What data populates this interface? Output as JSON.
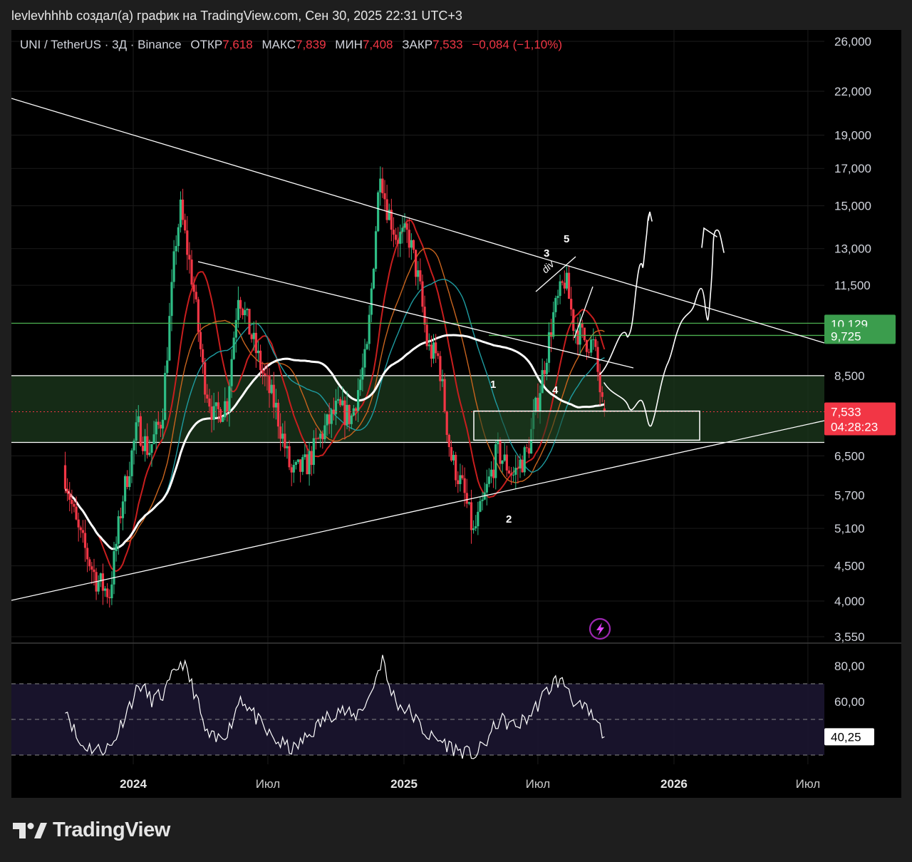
{
  "header": {
    "caption": "levlevhhhb создал(а) график на TradingView.com, Сен 30, 2025 22:31 UTC+3"
  },
  "symbol": {
    "name": "UNI / TetherUS · 3Д · Binance",
    "open_label": "ОТКР",
    "open": "7,618",
    "high_label": "МАКС",
    "high": "7,839",
    "low_label": "МИН",
    "low": "7,408",
    "close_label": "ЗАКР",
    "close": "7,533",
    "change": "−0,084 (−1,10%)"
  },
  "colors": {
    "up": "#2ebd85",
    "down": "#f23645",
    "ma_red": "#c81e1e",
    "ma_orange": "#c8641e",
    "ma_teal": "#1e9ba0",
    "ma_white": "#ffffff",
    "green_line": "#4caf50"
  },
  "chart_data": {
    "type": "candlestick",
    "timeframe": "3D",
    "y_scale": "log",
    "price_axis_labels": [
      "26,000",
      "22,000",
      "19,000",
      "17,000",
      "15,000",
      "13,000",
      "11,500",
      "8,500",
      "6,500",
      "5,700",
      "5,100",
      "4,500",
      "4,000",
      "3,550"
    ],
    "time_axis_labels": [
      "2024",
      "Июл",
      "2025",
      "Июл",
      "2026",
      "Июл"
    ],
    "price_tags": {
      "level_1": "10,129",
      "level_2": "9,725",
      "last_price": "7,533",
      "countdown": "04:28:23"
    },
    "price_path": [
      [
        "2023-10-01",
        6.3
      ],
      [
        "2023-10-20",
        5.1
      ],
      [
        "2023-11-15",
        4.3
      ],
      [
        "2023-12-03",
        4.1
      ],
      [
        "2023-12-20",
        5.6
      ],
      [
        "2024-01-10",
        7.2
      ],
      [
        "2024-01-25",
        6.6
      ],
      [
        "2024-02-12",
        7.4
      ],
      [
        "2024-03-01",
        13.2
      ],
      [
        "2024-03-08",
        14.8
      ],
      [
        "2024-03-25",
        11.5
      ],
      [
        "2024-04-08",
        8.5
      ],
      [
        "2024-04-22",
        7.4
      ],
      [
        "2024-05-10",
        7.8
      ],
      [
        "2024-05-25",
        11.3
      ],
      [
        "2024-06-08",
        10.0
      ],
      [
        "2024-06-28",
        8.5
      ],
      [
        "2024-07-15",
        7.6
      ],
      [
        "2024-08-05",
        6.1
      ],
      [
        "2024-08-25",
        6.3
      ],
      [
        "2024-09-15",
        7.0
      ],
      [
        "2024-10-05",
        7.6
      ],
      [
        "2024-10-25",
        7.4
      ],
      [
        "2024-11-15",
        9.2
      ],
      [
        "2024-12-03",
        17.2
      ],
      [
        "2024-12-10",
        15.2
      ],
      [
        "2024-12-25",
        13.5
      ],
      [
        "2025-01-10",
        13.6
      ],
      [
        "2025-01-25",
        11.5
      ],
      [
        "2025-02-05",
        9.3
      ],
      [
        "2025-02-20",
        9.0
      ],
      [
        "2025-03-08",
        6.5
      ],
      [
        "2025-03-25",
        5.8
      ],
      [
        "2025-04-08",
        5.0
      ],
      [
        "2025-04-20",
        5.5
      ],
      [
        "2025-05-10",
        6.6
      ],
      [
        "2025-06-01",
        6.1
      ],
      [
        "2025-06-20",
        6.6
      ],
      [
        "2025-07-10",
        8.5
      ],
      [
        "2025-07-25",
        10.4
      ],
      [
        "2025-08-10",
        11.8
      ],
      [
        "2025-08-22",
        10.0
      ],
      [
        "2025-09-05",
        9.6
      ],
      [
        "2025-09-18",
        9.4
      ],
      [
        "2025-09-30",
        7.533
      ]
    ],
    "rsi": {
      "period_axis_labels": [
        "80,00",
        "60,00"
      ],
      "current": "40,25",
      "bands": [
        30,
        50,
        70
      ],
      "path": [
        [
          "2023-10-01",
          58
        ],
        [
          "2023-10-20",
          36
        ],
        [
          "2023-11-15",
          33
        ],
        [
          "2023-12-03",
          35
        ],
        [
          "2023-12-20",
          52
        ],
        [
          "2024-01-10",
          70
        ],
        [
          "2024-01-25",
          61
        ],
        [
          "2024-02-12",
          64
        ],
        [
          "2024-03-01",
          80
        ],
        [
          "2024-03-08",
          82
        ],
        [
          "2024-03-25",
          64
        ],
        [
          "2024-04-08",
          42
        ],
        [
          "2024-04-22",
          38
        ],
        [
          "2024-05-10",
          45
        ],
        [
          "2024-05-25",
          63
        ],
        [
          "2024-06-08",
          55
        ],
        [
          "2024-06-28",
          43
        ],
        [
          "2024-07-15",
          37
        ],
        [
          "2024-08-05",
          33
        ],
        [
          "2024-08-25",
          41
        ],
        [
          "2024-09-15",
          50
        ],
        [
          "2024-10-05",
          56
        ],
        [
          "2024-10-25",
          51
        ],
        [
          "2024-11-15",
          62
        ],
        [
          "2024-12-03",
          85
        ],
        [
          "2024-12-10",
          70
        ],
        [
          "2024-12-25",
          58
        ],
        [
          "2025-01-10",
          54
        ],
        [
          "2025-01-25",
          45
        ],
        [
          "2025-02-05",
          40
        ],
        [
          "2025-02-20",
          38
        ],
        [
          "2025-03-08",
          34
        ],
        [
          "2025-03-25",
          31
        ],
        [
          "2025-04-08",
          30
        ],
        [
          "2025-04-20",
          36
        ],
        [
          "2025-05-10",
          50
        ],
        [
          "2025-06-01",
          46
        ],
        [
          "2025-06-20",
          52
        ],
        [
          "2025-07-10",
          64
        ],
        [
          "2025-07-25",
          72
        ],
        [
          "2025-08-10",
          69
        ],
        [
          "2025-08-22",
          57
        ],
        [
          "2025-09-05",
          55
        ],
        [
          "2025-09-18",
          48
        ],
        [
          "2025-09-30",
          40.25
        ]
      ]
    },
    "annotations": {
      "wave_labels": [
        "1",
        "2",
        "3",
        "4",
        "5"
      ],
      "div_label": "div"
    }
  },
  "footer": {
    "brand": "TradingView"
  }
}
